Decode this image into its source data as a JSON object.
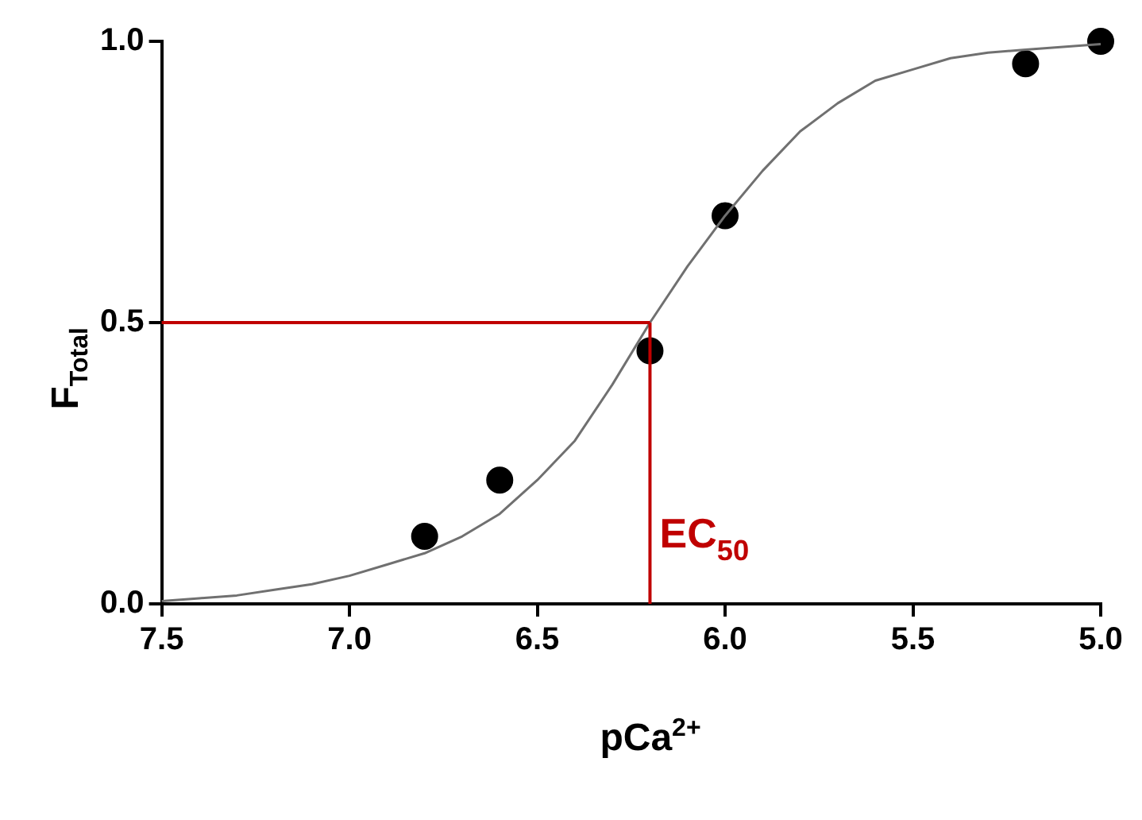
{
  "chart_data": {
    "type": "scatter",
    "xlabel": "pCa$^{2+}$",
    "ylabel": "F$_{Total}$",
    "xlim": [
      7.5,
      5.0
    ],
    "xticks": [
      {
        "value": 7.5,
        "label": "7.5"
      },
      {
        "value": 7,
        "label": "7.0"
      },
      {
        "value": 6.5,
        "label": "6.5"
      },
      {
        "value": 6,
        "label": "6.0"
      },
      {
        "value": 5.5,
        "label": "5.5"
      },
      {
        "value": 5,
        "label": "5.0"
      }
    ],
    "ylim": [
      0,
      1.0
    ],
    "yticks": [
      {
        "value": 0,
        "label": "0.0"
      },
      {
        "value": 0.5,
        "label": "0.5"
      },
      {
        "value": 1,
        "label": "1.0"
      }
    ],
    "grid": false,
    "legend": false,
    "series": [
      {
        "type": "line",
        "color": "#707070",
        "marker": "none",
        "x": [
          7.5,
          7.4,
          7.3,
          7.2,
          7.1,
          7.0,
          6.9,
          6.8,
          6.7,
          6.6,
          6.5,
          6.4,
          6.3,
          6.2,
          6.1,
          6.0,
          5.9,
          5.8,
          5.7,
          5.6,
          5.5,
          5.4,
          5.3,
          5.2,
          5.1,
          5.0
        ],
        "values": [
          0.005,
          0.01,
          0.015,
          0.025,
          0.035,
          0.05,
          0.07,
          0.09,
          0.12,
          0.16,
          0.22,
          0.29,
          0.39,
          0.5,
          0.6,
          0.69,
          0.77,
          0.84,
          0.89,
          0.93,
          0.95,
          0.97,
          0.98,
          0.985,
          0.99,
          0.995
        ]
      },
      {
        "color": "#000000",
        "marker": "circle",
        "x": [
          6.8,
          6.6,
          6.2,
          6.0,
          5.2,
          5.0
        ],
        "values": [
          0.12,
          0.22,
          0.45,
          0.69,
          0.96,
          1.0
        ]
      }
    ],
    "ref_lines": [
      {
        "axis": "y",
        "value": 0.5,
        "color": "#c00000"
      },
      {
        "axis": "x",
        "value": 6.2,
        "color": "#c00000"
      }
    ],
    "annotations": [
      {
        "text": "EC$_{50}$",
        "x": 6.2,
        "y": 0.1
      }
    ]
  }
}
